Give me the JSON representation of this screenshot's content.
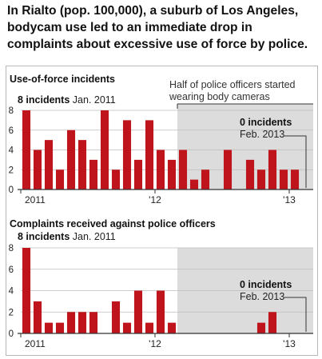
{
  "headline": {
    "line1": "In Rialto (pop. 100,000), a suburb of Los Angeles,",
    "line2": "bodycam use led to an immediate drop in",
    "line3": "complaints about excessive use of force by police."
  },
  "colors": {
    "bar": "#c0141c",
    "shade": "#dcdcdc",
    "grid": "#bdbdbd",
    "axis": "#333333"
  },
  "chart_data": [
    {
      "type": "bar",
      "title": "Use-of-force incidents",
      "xlabel": "",
      "ylabel": "",
      "ylim": [
        0,
        8
      ],
      "yticks": [
        0,
        2,
        4,
        6,
        8
      ],
      "grid": true,
      "shaded_from_index": 14,
      "shade_label_line1": "Half of police officers started",
      "shade_label_line2": "wearing body cameras",
      "x_tick_labels": [
        {
          "index": 0,
          "label": "2011"
        },
        {
          "index": 12,
          "label": "'12"
        },
        {
          "index": 24,
          "label": "'13"
        }
      ],
      "annotations": [
        {
          "index": 0,
          "bold": "8 incidents",
          "text": "Jan. 2011"
        },
        {
          "index": 25,
          "bold": "0 incidents",
          "text": "Feb. 2013"
        }
      ],
      "values": [
        8,
        4,
        5,
        2,
        6,
        5,
        3,
        8,
        2,
        7,
        3,
        7,
        4,
        3,
        4,
        1,
        2,
        0,
        4,
        0,
        3,
        2,
        4,
        2,
        2,
        0
      ]
    },
    {
      "type": "bar",
      "title": "Complaints received against police officers",
      "xlabel": "",
      "ylabel": "",
      "ylim": [
        0,
        8
      ],
      "yticks": [
        0,
        2,
        4,
        6,
        8
      ],
      "grid": true,
      "shaded_from_index": 14,
      "x_tick_labels": [
        {
          "index": 0,
          "label": "2011"
        },
        {
          "index": 12,
          "label": "'12"
        },
        {
          "index": 24,
          "label": "'13"
        }
      ],
      "annotations": [
        {
          "index": 0,
          "bold": "8 incidents",
          "text": "Jan. 2011"
        },
        {
          "index": 25,
          "bold": "0 incidents",
          "text": "Feb. 2013"
        }
      ],
      "values": [
        8,
        3,
        1,
        1,
        2,
        2,
        2,
        0,
        3,
        1,
        4,
        1,
        4,
        1,
        0,
        0,
        0,
        0,
        0,
        0,
        0,
        1,
        2,
        0,
        0,
        0
      ]
    }
  ]
}
